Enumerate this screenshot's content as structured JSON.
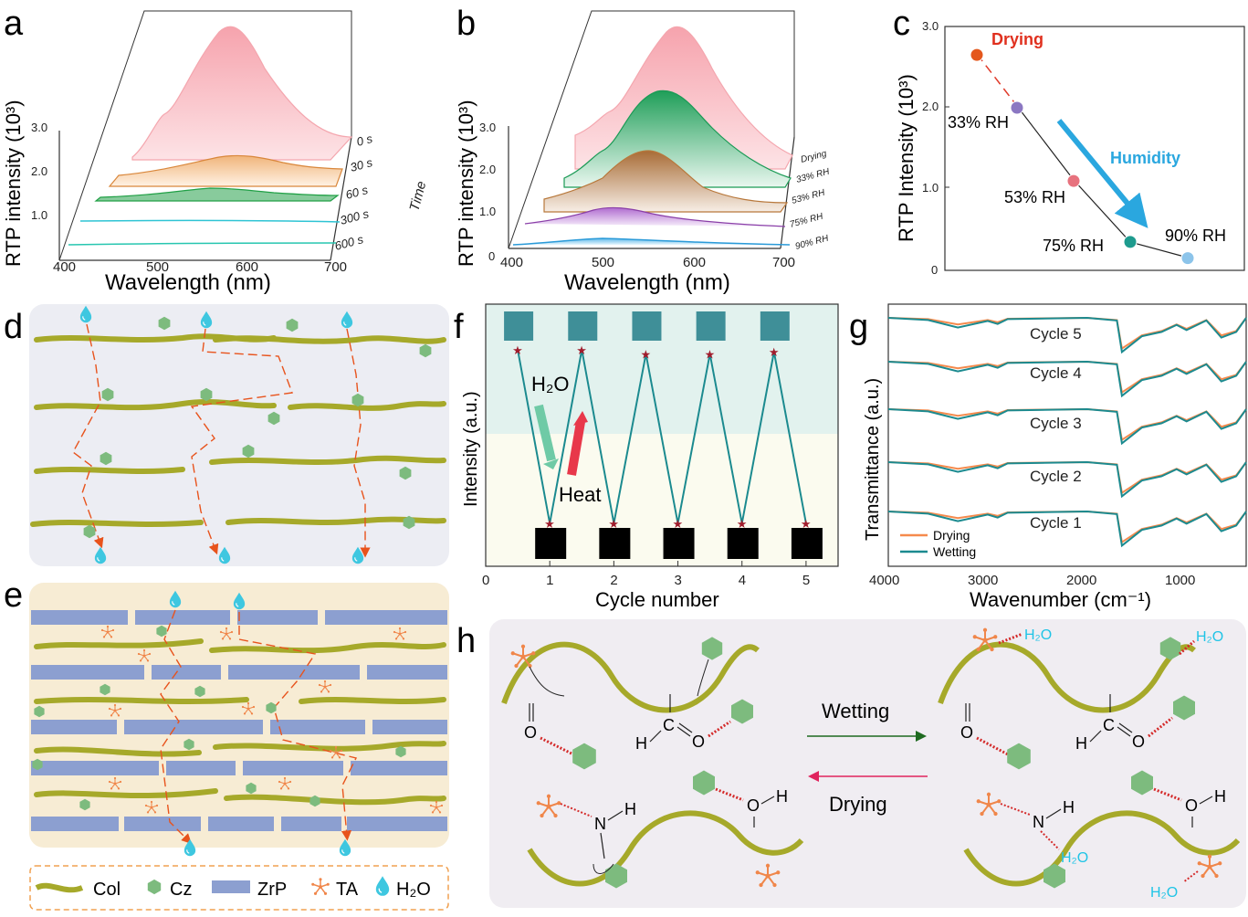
{
  "panels": {
    "a": {
      "letter": "a",
      "ylabel": "RTP intensity (10³)",
      "xlabel": "Wavelength (nm)",
      "yticks": [
        "1.0",
        "2.0",
        "3.0"
      ],
      "xticks": [
        "400",
        "500",
        "600",
        "700"
      ],
      "depth_axis_label": "Time",
      "traces": [
        {
          "label": "0 s",
          "color": "#f4a6ae",
          "fill": "#f8b7be"
        },
        {
          "label": "30 s",
          "color": "#d9873b",
          "fill": "#f3c08c"
        },
        {
          "label": "60 s",
          "color": "#21a046",
          "fill": "#2fb35a"
        },
        {
          "label": "300 s",
          "color": "#2ec4d4",
          "fill": "#a8e6ef"
        },
        {
          "label": "600 s",
          "color": "#27c6b0",
          "fill": "#a8eee2"
        }
      ]
    },
    "b": {
      "letter": "b",
      "ylabel": "RTP intensity (10³)",
      "xlabel": "Wavelength (nm)",
      "yticks": [
        "0",
        "1.0",
        "2.0",
        "3.0"
      ],
      "xticks": [
        "400",
        "500",
        "600",
        "700"
      ],
      "traces": [
        {
          "label": "Drying",
          "color": "#f4a6ae",
          "fill": "#f6a9b1"
        },
        {
          "label": "33% RH",
          "color": "#1a9a55",
          "fill": "#2fb870"
        },
        {
          "label": "53% RH",
          "color": "#b8783b",
          "fill": "#b57a45"
        },
        {
          "label": "75% RH",
          "color": "#8a3fa8",
          "fill": "#b77ad0"
        },
        {
          "label": "90% RH",
          "color": "#2a9ad8",
          "fill": "#8fd0f1"
        }
      ]
    },
    "c": {
      "letter": "c",
      "ylabel": "RTP Intensity (10³)",
      "yticks": [
        "0",
        "1.0",
        "2.0",
        "3.0"
      ],
      "annotation_drying": "Drying",
      "annotation_humidity": "Humidity",
      "colors": {
        "drying": "#e0301e",
        "humidity": "#2aa7df"
      }
    },
    "d": {
      "letter": "d"
    },
    "e": {
      "letter": "e",
      "legend": [
        {
          "icon": "col-icon",
          "label": "Col"
        },
        {
          "icon": "cz-icon",
          "label": "Cz"
        },
        {
          "icon": "zrp-icon",
          "label": "ZrP"
        },
        {
          "icon": "ta-icon",
          "label": "TA"
        },
        {
          "icon": "water-icon",
          "label": "H₂O"
        }
      ]
    },
    "f": {
      "letter": "f",
      "ylabel": "Intensity (a.u.)",
      "xlabel": "Cycle number",
      "xticks": [
        "0",
        "1",
        "2",
        "3",
        "4",
        "5"
      ],
      "water_label": "H₂O",
      "heat_label": "Heat"
    },
    "g": {
      "letter": "g",
      "ylabel": "Transmittance (a.u.)",
      "xlabel": "Wavenumber (cm⁻¹)",
      "xticks": [
        "4000",
        "3000",
        "2000",
        "1000"
      ],
      "cycles": [
        "Cycle 5",
        "Cycle 4",
        "Cycle 3",
        "Cycle 2",
        "Cycle 1"
      ],
      "legend": [
        {
          "label": "Drying",
          "color": "#f58a4c"
        },
        {
          "label": "Wetting",
          "color": "#1b8a8f"
        }
      ]
    },
    "h": {
      "letter": "h",
      "wetting_label": "Wetting",
      "drying_label": "Drying",
      "atoms": {
        "o": "O",
        "h": "H",
        "c": "C",
        "n": "N"
      },
      "water": "H₂O"
    }
  },
  "chart_data": [
    {
      "type": "line",
      "title": "a",
      "xlabel": "Wavelength (nm)",
      "ylabel": "RTP intensity (10³)",
      "xlim": [
        400,
        700
      ],
      "ylim": [
        0,
        3.0
      ],
      "x": [
        400,
        450,
        480,
        500,
        520,
        550,
        580,
        600,
        620,
        650,
        680,
        700
      ],
      "series": [
        {
          "name": "0 s",
          "values": [
            0.0,
            0.2,
            0.65,
            0.7,
            1.1,
            2.2,
            3.0,
            2.8,
            2.2,
            1.2,
            0.5,
            0.2
          ]
        },
        {
          "name": "30 s",
          "values": [
            0.0,
            0.02,
            0.08,
            0.12,
            0.2,
            0.3,
            0.34,
            0.3,
            0.22,
            0.12,
            0.05,
            0.02
          ]
        },
        {
          "name": "60 s",
          "values": [
            0.0,
            0.01,
            0.03,
            0.05,
            0.09,
            0.12,
            0.1,
            0.07,
            0.05,
            0.03,
            0.01,
            0.0
          ]
        },
        {
          "name": "300 s",
          "values": [
            0.0,
            0.0,
            0.01,
            0.01,
            0.02,
            0.02,
            0.02,
            0.01,
            0.01,
            0.0,
            0.0,
            0.0
          ]
        },
        {
          "name": "600 s",
          "values": [
            0.0,
            0.0,
            0.0,
            0.01,
            0.01,
            0.01,
            0.01,
            0.01,
            0.0,
            0.0,
            0.0,
            0.0
          ]
        }
      ]
    },
    {
      "type": "line",
      "title": "b",
      "xlabel": "Wavelength (nm)",
      "ylabel": "RTP intensity (10³)",
      "xlim": [
        400,
        700
      ],
      "ylim": [
        0,
        3.0
      ],
      "x": [
        400,
        450,
        480,
        500,
        520,
        550,
        580,
        600,
        620,
        650,
        680,
        700
      ],
      "series": [
        {
          "name": "Drying",
          "values": [
            0.0,
            0.2,
            0.6,
            0.7,
            1.1,
            2.2,
            2.9,
            2.75,
            2.1,
            1.2,
            0.5,
            0.2
          ]
        },
        {
          "name": "33% RH",
          "values": [
            0.0,
            0.15,
            0.45,
            0.55,
            0.9,
            1.65,
            1.9,
            1.7,
            1.25,
            0.65,
            0.25,
            0.1
          ]
        },
        {
          "name": "53% RH",
          "values": [
            0.0,
            0.1,
            0.3,
            0.4,
            0.65,
            1.05,
            1.1,
            0.95,
            0.65,
            0.3,
            0.1,
            0.05
          ]
        },
        {
          "name": "75% RH",
          "values": [
            0.0,
            0.05,
            0.15,
            0.2,
            0.3,
            0.35,
            0.3,
            0.22,
            0.15,
            0.07,
            0.03,
            0.01
          ]
        },
        {
          "name": "90% RH",
          "values": [
            0.0,
            0.02,
            0.06,
            0.08,
            0.1,
            0.1,
            0.08,
            0.06,
            0.04,
            0.02,
            0.01,
            0.0
          ]
        }
      ]
    },
    {
      "type": "scatter",
      "title": "c",
      "ylabel": "RTP Intensity (10³)",
      "ylim": [
        0,
        3.0
      ],
      "points": [
        {
          "label": "Drying",
          "value": 2.65,
          "color": "#e4571c"
        },
        {
          "label": "33% RH",
          "value": 2.0,
          "color": "#8b77c2"
        },
        {
          "label": "53% RH",
          "value": 1.1,
          "color": "#e7727e"
        },
        {
          "label": "75% RH",
          "value": 0.35,
          "color": "#1e9b8e"
        },
        {
          "label": "90% RH",
          "value": 0.15,
          "color": "#8cc4ea"
        }
      ]
    },
    {
      "type": "line",
      "title": "f",
      "xlabel": "Cycle number",
      "ylabel": "Intensity (a.u.)",
      "xlim": [
        0,
        5.5
      ],
      "ylim": [
        0,
        1
      ],
      "x": [
        0.5,
        1,
        1.5,
        2,
        2.5,
        3,
        3.5,
        4,
        4.5,
        5
      ],
      "series": [
        {
          "name": "Intensity",
          "values": [
            0.85,
            0.0,
            0.85,
            0.0,
            0.83,
            0.0,
            0.83,
            0.0,
            0.84,
            0.0
          ]
        }
      ]
    },
    {
      "type": "line",
      "title": "g",
      "xlabel": "Wavenumber (cm⁻¹)",
      "ylabel": "Transmittance (a.u.)",
      "xlim": [
        4000,
        400
      ],
      "x": [
        4000,
        3600,
        3300,
        3000,
        2900,
        2800,
        2000,
        1700,
        1650,
        1550,
        1450,
        1250,
        1100,
        1000,
        800,
        650,
        500,
        400
      ],
      "series": [
        {
          "name": "Drying",
          "values": [
            1.0,
            0.97,
            0.85,
            0.95,
            0.9,
            0.98,
            1.0,
            0.95,
            0.3,
            0.45,
            0.6,
            0.7,
            0.85,
            0.75,
            0.95,
            0.6,
            0.7,
            1.0
          ]
        },
        {
          "name": "Wetting",
          "values": [
            1.0,
            0.95,
            0.78,
            0.93,
            0.86,
            0.97,
            1.0,
            0.94,
            0.22,
            0.4,
            0.58,
            0.68,
            0.84,
            0.72,
            0.94,
            0.55,
            0.68,
            1.0
          ]
        }
      ]
    }
  ]
}
